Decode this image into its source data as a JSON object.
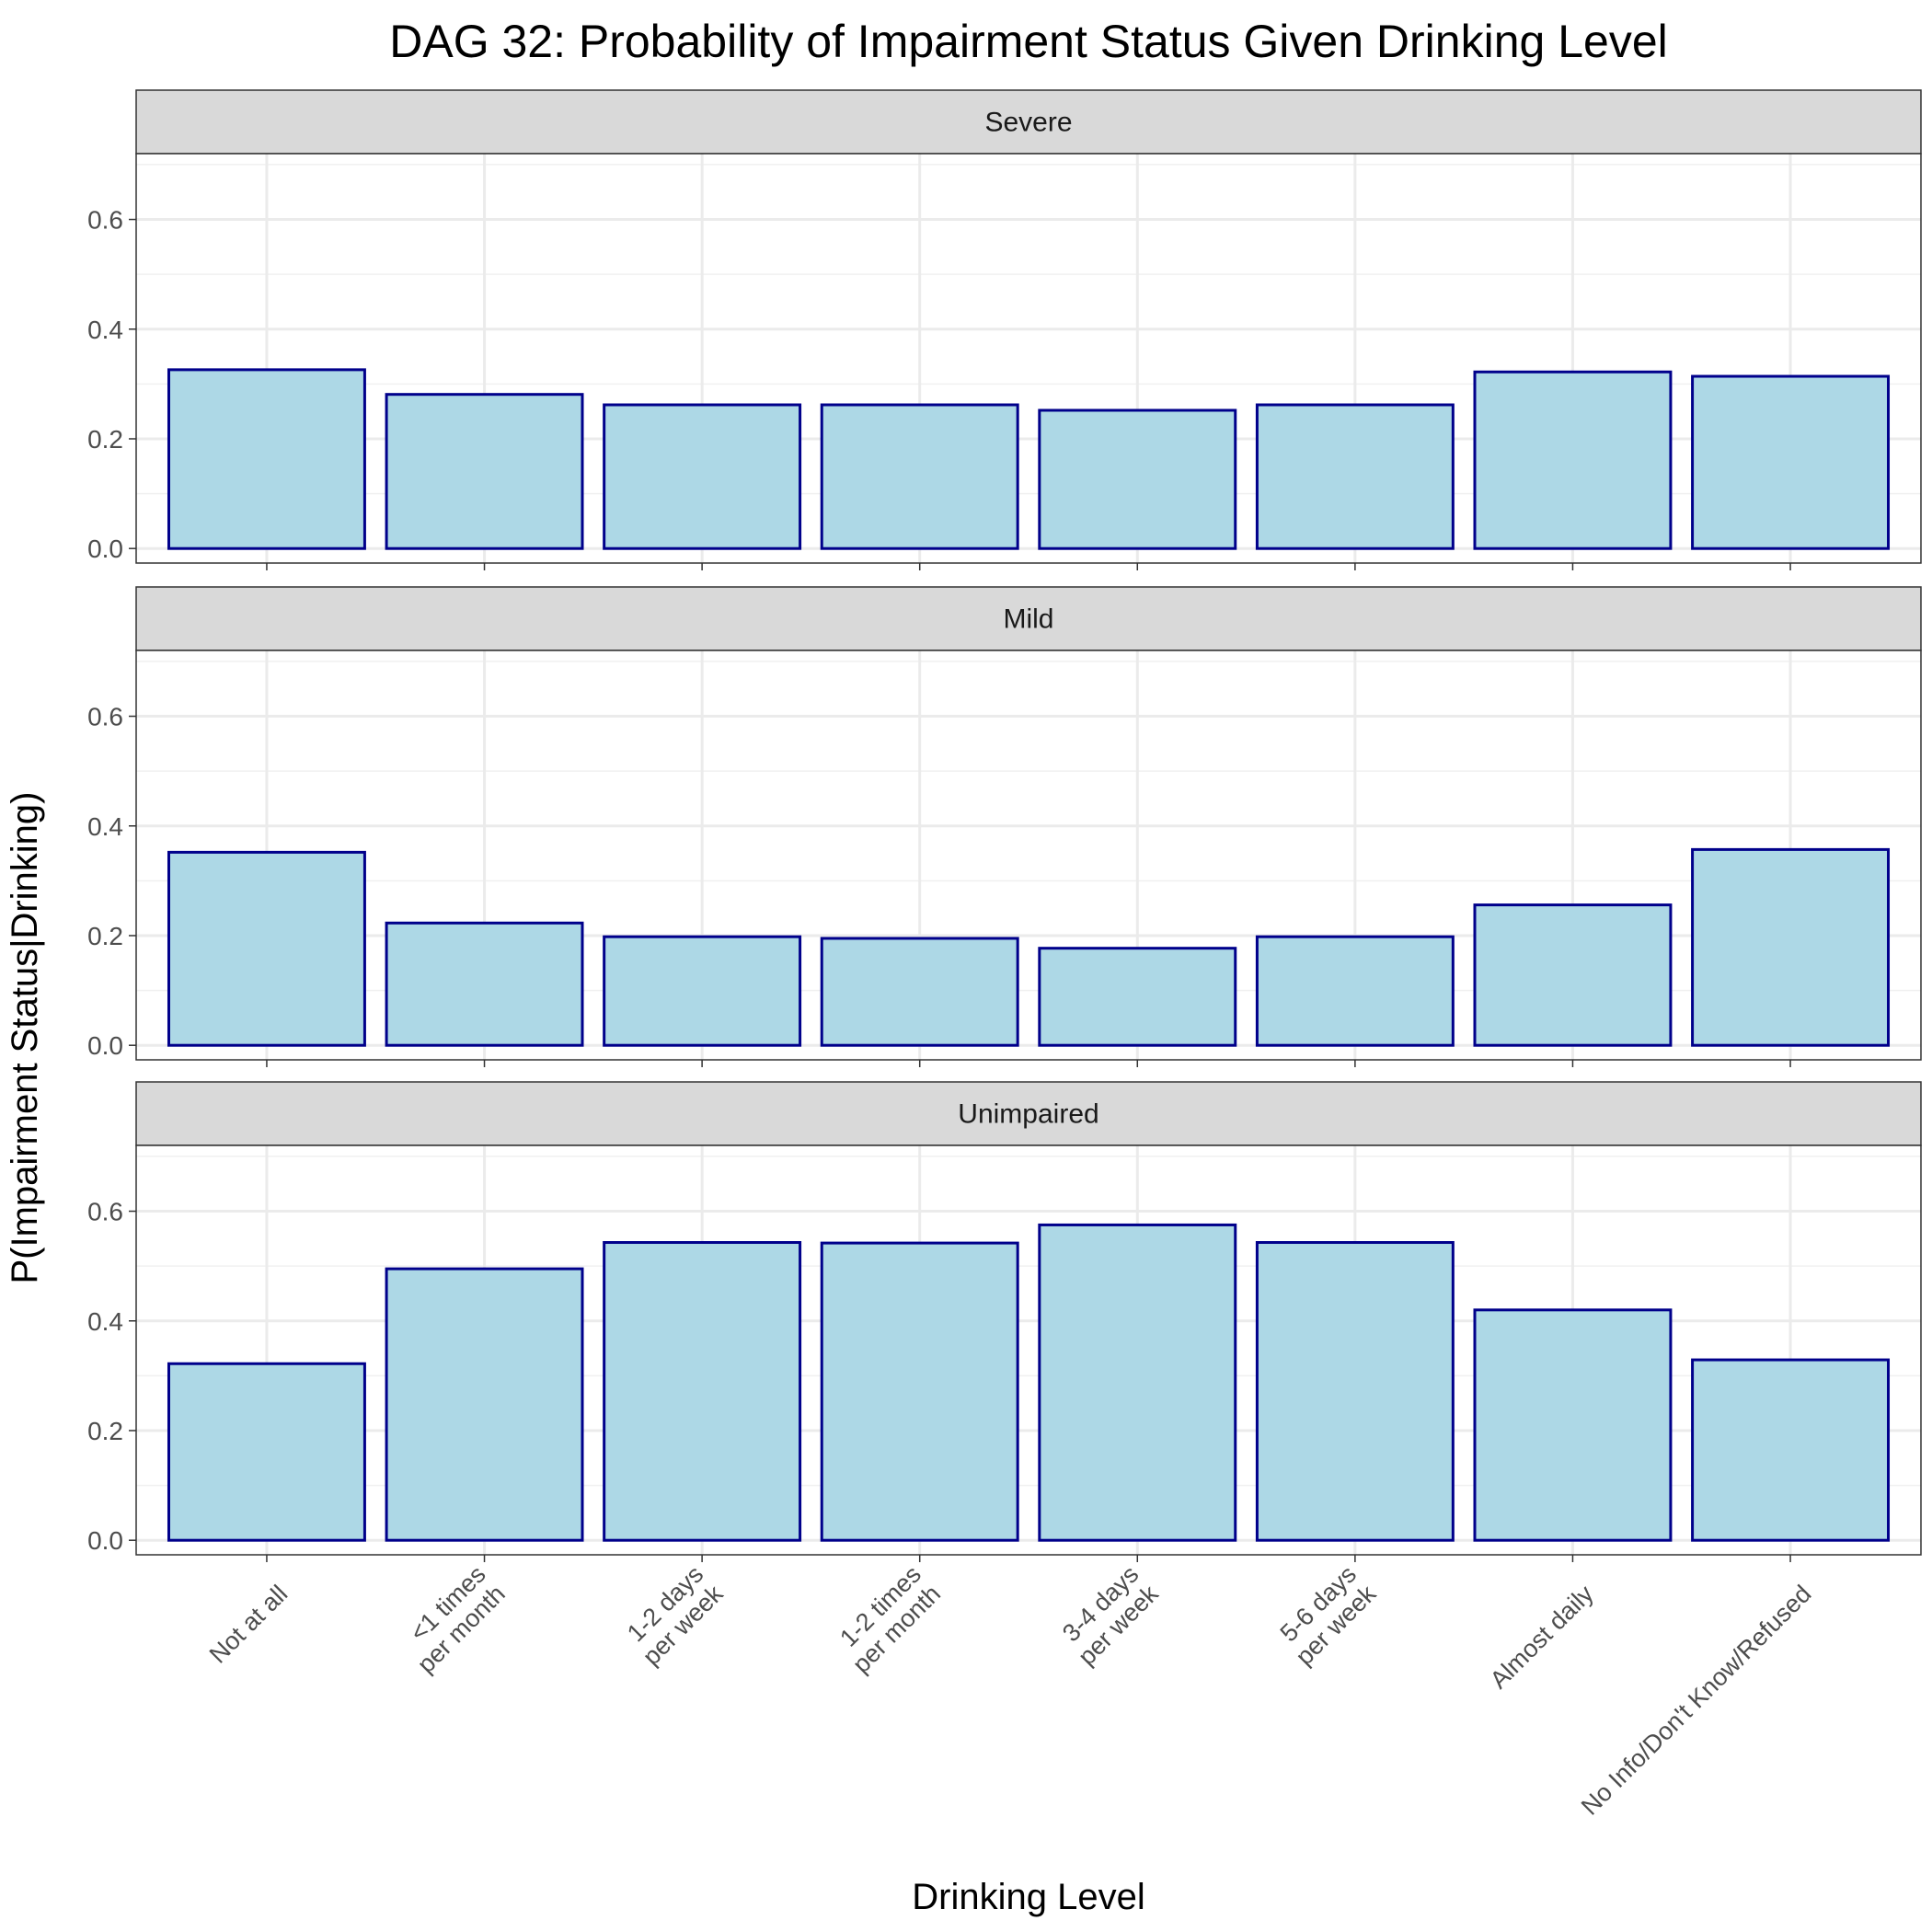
{
  "chart_data": {
    "type": "bar",
    "title": "DAG 32: Probability of Impairment Status Given Drinking Level",
    "xlabel": "Drinking Level",
    "ylabel": "P(Impairment Status|Drinking)",
    "ylim": [
      0,
      0.7
    ],
    "y_ticks": [
      "0.0",
      "0.2",
      "0.4",
      "0.6"
    ],
    "grid": true,
    "categories": [
      [
        "Not at all"
      ],
      [
        "<1 times",
        "per month"
      ],
      [
        "1-2 days",
        "per week"
      ],
      [
        "1-2 times",
        "per month"
      ],
      [
        "3-4 days",
        "per week"
      ],
      [
        "5-6 days",
        "per week"
      ],
      [
        "Almost daily"
      ],
      [
        "No Info/Don't Know/Refused"
      ]
    ],
    "bar_fill": "#add8e6",
    "bar_stroke": "#00008b",
    "strip_fill": "#d9d9d9",
    "facets": [
      {
        "name": "Severe",
        "values": [
          0.326,
          0.281,
          0.262,
          0.262,
          0.252,
          0.262,
          0.322,
          0.314
        ]
      },
      {
        "name": "Mild",
        "values": [
          0.352,
          0.223,
          0.198,
          0.195,
          0.177,
          0.198,
          0.256,
          0.357
        ]
      },
      {
        "name": "Unimpaired",
        "values": [
          0.322,
          0.495,
          0.543,
          0.542,
          0.575,
          0.543,
          0.42,
          0.329
        ]
      }
    ]
  }
}
